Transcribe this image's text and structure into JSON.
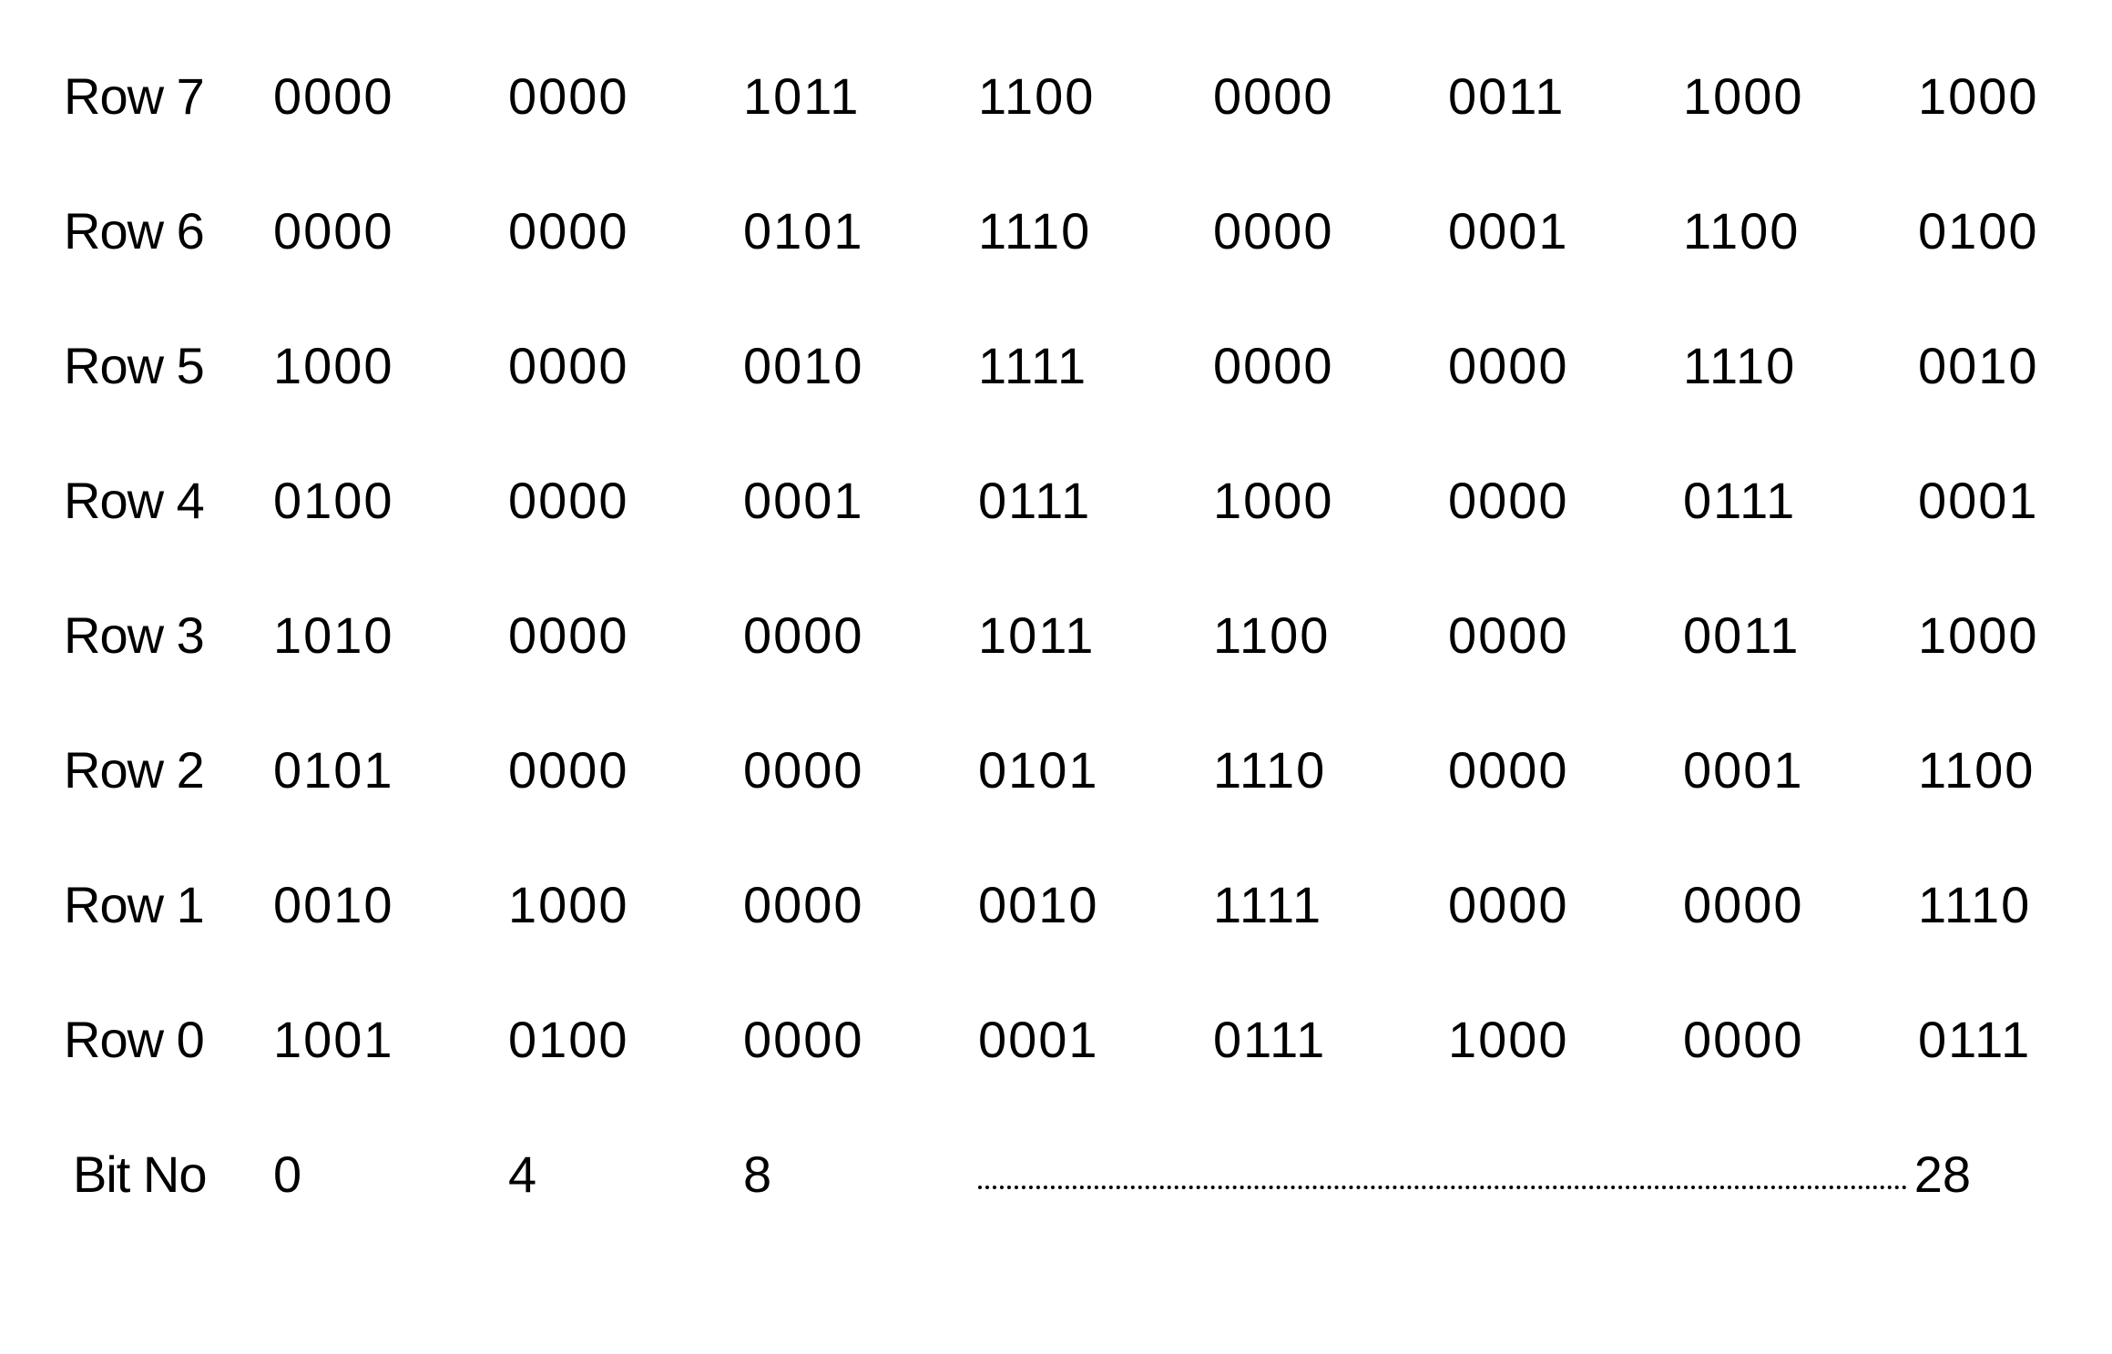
{
  "table": {
    "type": "table",
    "font_family": "Helvetica, Arial, sans-serif",
    "font_size_pt": 42,
    "text_color": "#000000",
    "background_color": "#ffffff",
    "row_labels": [
      "Row 7",
      "Row 6",
      "Row 5",
      "Row 4",
      "Row 3",
      "Row 2",
      "Row 1",
      "Row 0"
    ],
    "rows": [
      [
        "0000",
        "0000",
        "1011",
        "1100",
        "0000",
        "0011",
        "1000",
        "1000"
      ],
      [
        "0000",
        "0000",
        "0101",
        "1110",
        "0000",
        "0001",
        "1100",
        "0100"
      ],
      [
        "1000",
        "0000",
        "0010",
        "1111",
        "0000",
        "0000",
        "1110",
        "0010"
      ],
      [
        "0100",
        "0000",
        "0001",
        "0111",
        "1000",
        "0000",
        "0111",
        "0001"
      ],
      [
        "1010",
        "0000",
        "0000",
        "1011",
        "1100",
        "0000",
        "0011",
        "1000"
      ],
      [
        "0101",
        "0000",
        "0000",
        "0101",
        "1110",
        "0000",
        "0001",
        "1100"
      ],
      [
        "0010",
        "1000",
        "0000",
        "0010",
        "1111",
        "0000",
        "0000",
        "1110"
      ],
      [
        "1001",
        "0100",
        "0000",
        "0001",
        "0111",
        "1000",
        "0000",
        "0111"
      ]
    ],
    "bitno_label": "Bit No",
    "bitno_values": [
      "0",
      "4",
      "8"
    ],
    "bitno_end": "28"
  }
}
